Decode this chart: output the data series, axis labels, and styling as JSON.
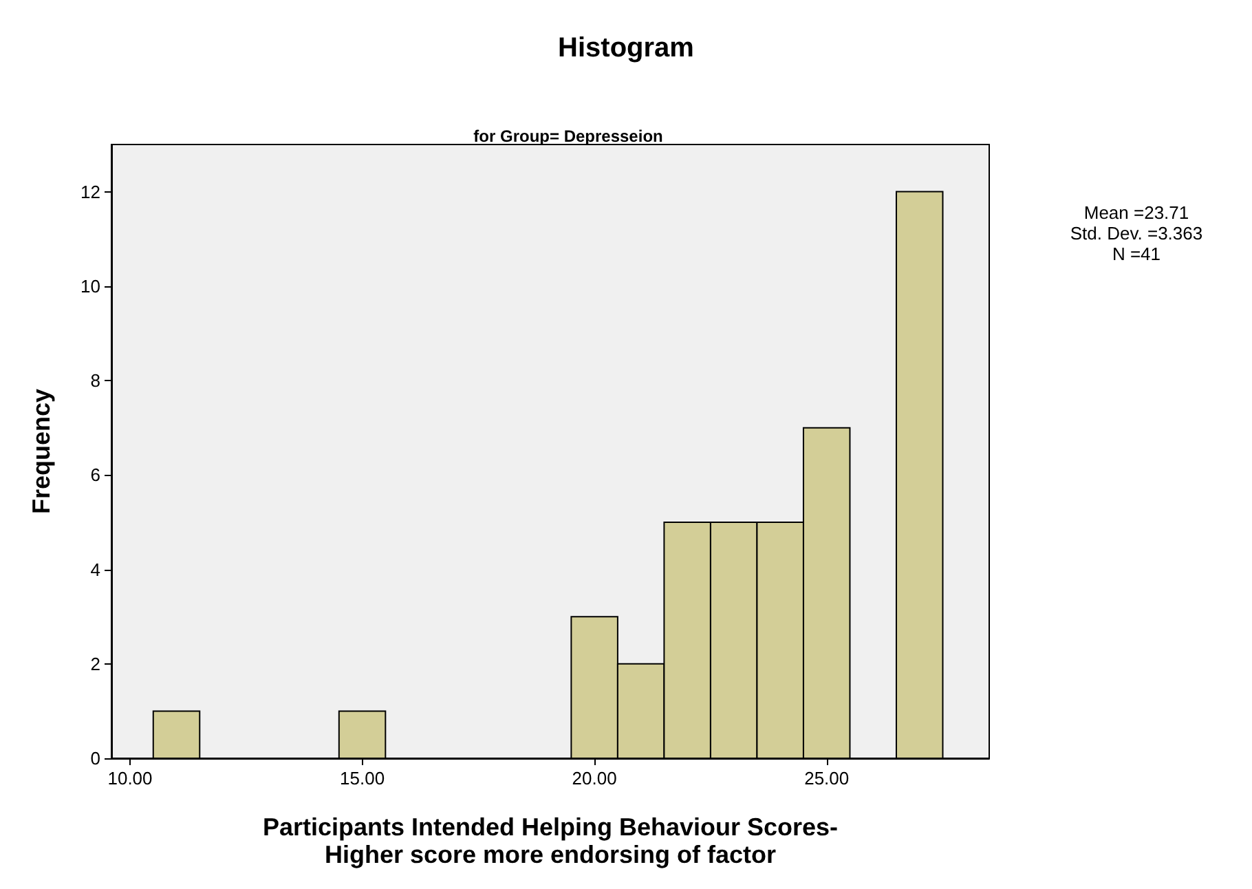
{
  "chart_data": {
    "type": "histogram",
    "title": "Histogram",
    "subtitle": "for Group= Depresseion",
    "xlabel": "Participants Intended Helping Behaviour Scores-\nHigher score more endorsing of factor",
    "ylabel": "Frequency",
    "bins": [
      10.5,
      11.5,
      12.5,
      13.5,
      14.5,
      15.5,
      16.5,
      17.5,
      18.5,
      19.5,
      20.5,
      21.5,
      22.5,
      23.5,
      24.5,
      25.5,
      26.5,
      27.5
    ],
    "values": [
      1,
      0,
      0,
      0,
      1,
      0,
      0,
      0,
      0,
      3,
      2,
      5,
      5,
      5,
      7,
      0,
      12
    ],
    "color": "#d3ce97",
    "xlim": [
      9.6,
      28.5
    ],
    "xticks": [
      {
        "value": 10,
        "label": "10.00"
      },
      {
        "value": 15,
        "label": "15.00"
      },
      {
        "value": 20,
        "label": "20.00"
      },
      {
        "value": 25,
        "label": "25.00"
      }
    ],
    "ylim": [
      0,
      13
    ],
    "yticks": [
      0,
      2,
      4,
      6,
      8,
      10,
      12
    ],
    "grid": false,
    "annotations": [
      "Mean =23.71",
      "Std. Dev. =3.363",
      "N =41"
    ]
  }
}
